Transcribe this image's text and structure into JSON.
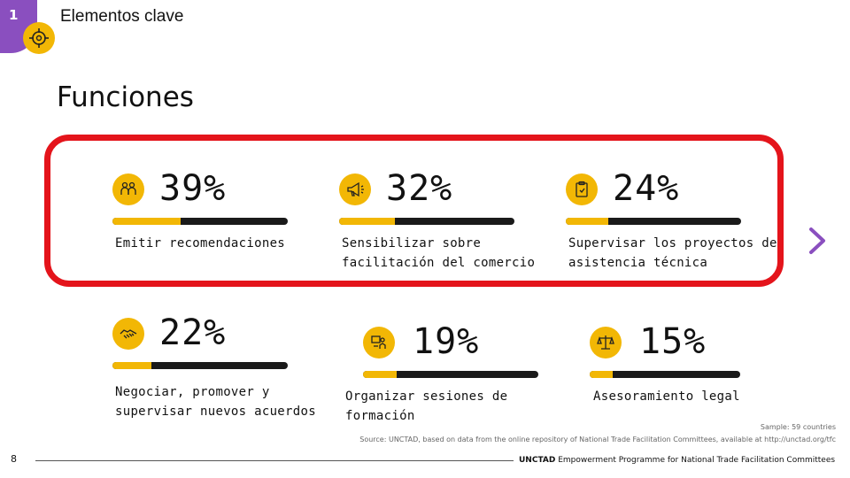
{
  "header": {
    "section_number": "1",
    "title": "Elementos clave"
  },
  "page_title": "Funciones",
  "items": [
    {
      "percent": "39%",
      "share": 0.39,
      "label": "Emitir recomendaciones",
      "icon": "people-icon"
    },
    {
      "percent": "32%",
      "share": 0.32,
      "label": "Sensibilizar sobre facilitación del comercio",
      "icon": "megaphone-icon"
    },
    {
      "percent": "24%",
      "share": 0.24,
      "label": "Supervisar los proyectos de asistencia técnica",
      "icon": "clipboard-check-icon"
    },
    {
      "percent": "22%",
      "share": 0.22,
      "label": "Negociar, promover y supervisar nuevos acuerdos",
      "icon": "handshake-icon"
    },
    {
      "percent": "19%",
      "share": 0.19,
      "label": "Organizar sesiones de formación",
      "icon": "training-icon"
    },
    {
      "percent": "15%",
      "share": 0.15,
      "label": "Asesoramiento legal",
      "icon": "scales-icon"
    }
  ],
  "notes": {
    "sample": "Sample: 59 countries",
    "source": "Source: UNCTAD, based on data from the online repository of National Trade Facilitation Committees, available at http://unctad.org/tfc"
  },
  "footer": {
    "page_number": "8",
    "org": "UNCTAD",
    "programme": "Empowerment Programme for National Trade Facilitation Committees"
  },
  "colors": {
    "accent": "#f2b705",
    "highlight_frame": "#e4141b",
    "section_tab": "#8a4fbf",
    "track": "#1a1a1a"
  }
}
